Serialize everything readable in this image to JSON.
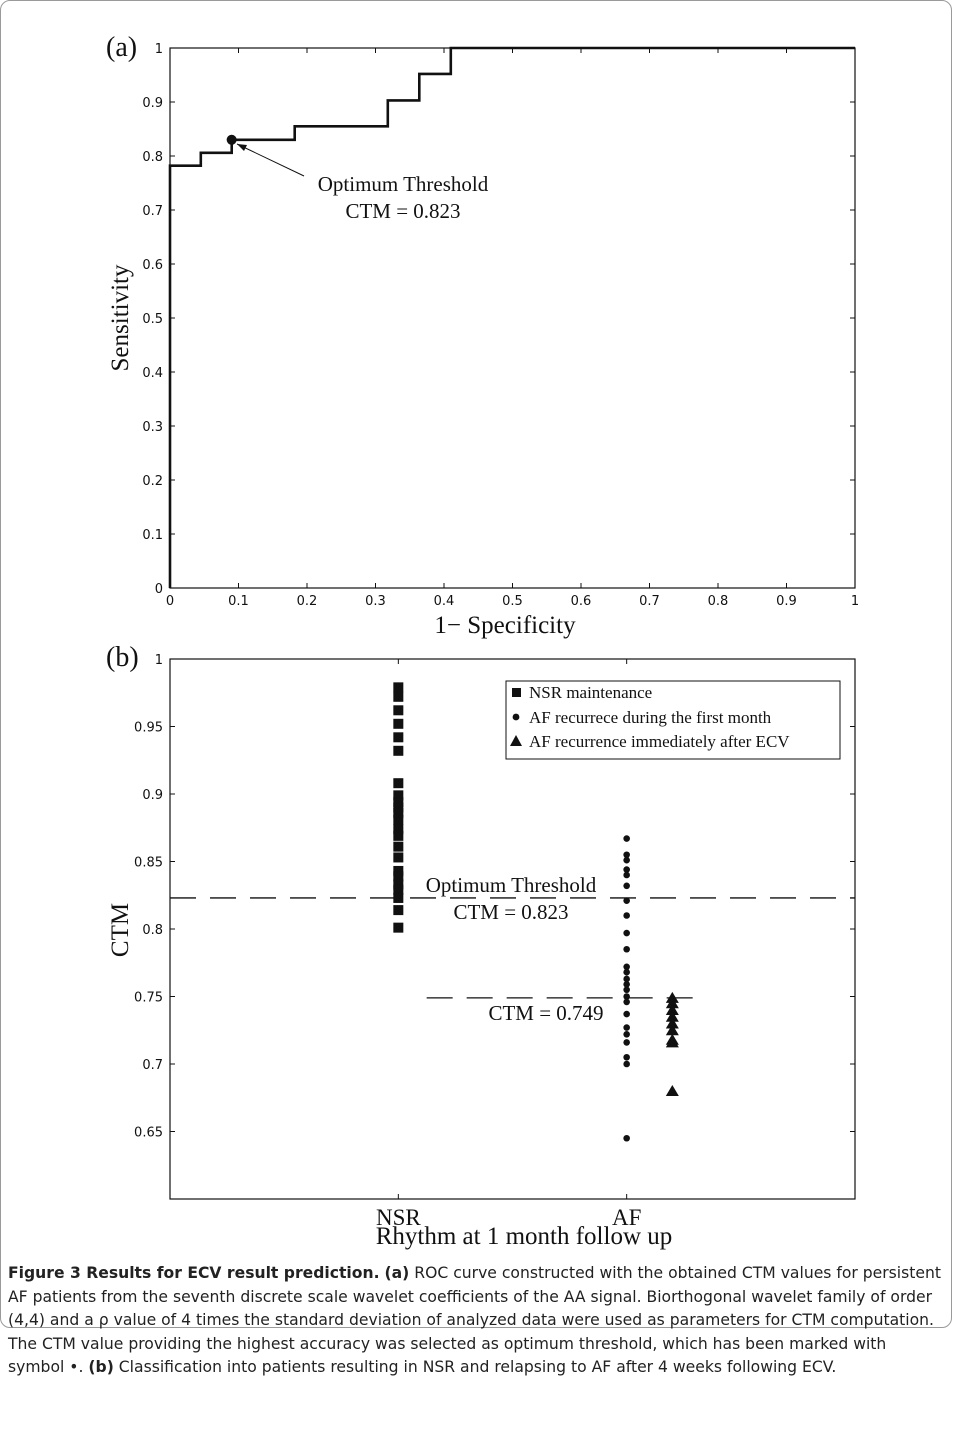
{
  "chart_data": [
    {
      "panel_label": "(a)",
      "type": "line",
      "xlabel": "1− Specificity",
      "ylabel": "Sensitivity",
      "xlim": [
        0,
        1
      ],
      "ylim": [
        0,
        1
      ],
      "xticks": [
        "0",
        "0.1",
        "0.2",
        "0.3",
        "0.4",
        "0.5",
        "0.6",
        "0.7",
        "0.8",
        "0.9",
        "1"
      ],
      "yticks": [
        "0",
        "0.1",
        "0.2",
        "0.3",
        "0.4",
        "0.5",
        "0.6",
        "0.7",
        "0.8",
        "0.9",
        "1"
      ],
      "grid": false,
      "step_curve": [
        [
          0,
          0
        ],
        [
          0,
          0.782
        ],
        [
          0.045,
          0.782
        ],
        [
          0.045,
          0.806
        ],
        [
          0.09,
          0.806
        ],
        [
          0.09,
          0.83
        ],
        [
          0.182,
          0.83
        ],
        [
          0.182,
          0.855
        ],
        [
          0.318,
          0.855
        ],
        [
          0.318,
          0.903
        ],
        [
          0.364,
          0.903
        ],
        [
          0.364,
          0.952
        ],
        [
          0.41,
          0.952
        ],
        [
          0.41,
          1
        ],
        [
          1,
          1
        ]
      ],
      "optimum_point": [
        0.09,
        0.83
      ],
      "annotation": [
        "Optimum Threshold",
        "CTM = 0.823"
      ]
    },
    {
      "panel_label": "(b)",
      "type": "scatter",
      "xlabel": "Rhythm at 1 month follow up",
      "ylabel": "CTM",
      "categories": [
        "NSR",
        "AF"
      ],
      "ylim": [
        0.6,
        1
      ],
      "yticks": [
        "0.65",
        "0.7",
        "0.75",
        "0.8",
        "0.85",
        "0.9",
        "0.95",
        "1"
      ],
      "grid": false,
      "legend_position": "top-right",
      "series": [
        {
          "name": "NSR maintenance",
          "marker": "square",
          "category": "NSR",
          "values": [
            0.979,
            0.972,
            0.962,
            0.952,
            0.942,
            0.932,
            0.908,
            0.899,
            0.894,
            0.89,
            0.886,
            0.881,
            0.874,
            0.869,
            0.861,
            0.853,
            0.843,
            0.839,
            0.833,
            0.829,
            0.823,
            0.814,
            0.801
          ]
        },
        {
          "name": "AF recurrece during the first month",
          "marker": "circle",
          "category": "AF",
          "values": [
            0.867,
            0.855,
            0.851,
            0.844,
            0.84,
            0.832,
            0.821,
            0.81,
            0.797,
            0.785,
            0.772,
            0.768,
            0.763,
            0.759,
            0.755,
            0.75,
            0.746,
            0.737,
            0.727,
            0.722,
            0.716,
            0.705,
            0.7,
            0.645
          ]
        },
        {
          "name": "AF recurrence immediately after ECV",
          "marker": "triangle",
          "category": "AF",
          "offset": 0.2,
          "values": [
            0.749,
            0.745,
            0.74,
            0.735,
            0.73,
            0.725,
            0.718,
            0.716,
            0.68
          ]
        }
      ],
      "threshold_lines": [
        {
          "value": 0.823,
          "span": "full",
          "labels": [
            "Optimum Threshold",
            "CTM = 0.823"
          ]
        },
        {
          "value": 0.749,
          "span": "AF",
          "labels": [
            "CTM = 0.749"
          ]
        }
      ]
    }
  ],
  "caption": {
    "figure_label": "Figure 3 Results for ECV result prediction.",
    "part_a_label": "(a)",
    "part_a_text": "ROC curve constructed with the obtained CTM values for persistent AF patients from the seventh discrete scale wavelet coefficients of the AA signal. Biorthogonal wavelet family of order (4,4) and a ρ value of 4 times the standard deviation of analyzed data were used as parameters for CTM computation. The CTM value providing the highest accuracy was selected as optimum threshold, which has been marked with symbol •.",
    "part_b_label": "(b)",
    "part_b_text": "Classification into patients resulting in NSR and relapsing to AF after 4 weeks following ECV."
  }
}
